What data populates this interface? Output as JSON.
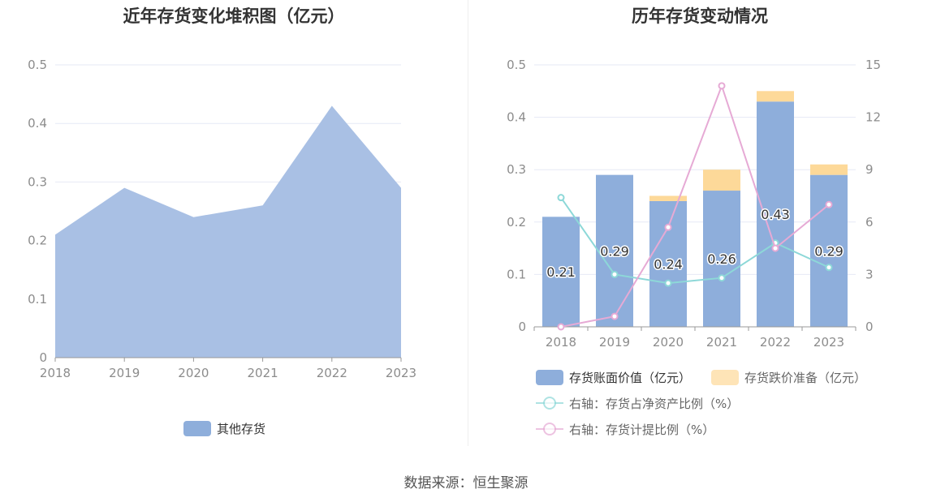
{
  "colors": {
    "area": "#a9c0e4",
    "bar_book": "#8eaedb",
    "bar_provision": "#fdd999",
    "line_share": "#8dd8d8",
    "line_provision": "#e6aad5",
    "grid": "#e6e9f5",
    "axis": "#999999"
  },
  "chart_data": [
    {
      "type": "area",
      "title": "近年存货变化堆积图（亿元）",
      "categories": [
        "2018",
        "2019",
        "2020",
        "2021",
        "2022",
        "2023"
      ],
      "series": [
        {
          "name": "其他存货",
          "values": [
            0.21,
            0.29,
            0.24,
            0.26,
            0.43,
            0.29
          ]
        }
      ],
      "ylim": [
        0,
        0.5
      ],
      "yticks": [
        "0",
        "0.1",
        "0.2",
        "0.3",
        "0.4",
        "0.5"
      ],
      "grid": true,
      "legend_position": "bottom"
    },
    {
      "type": "bar",
      "title": "历年存货变动情况",
      "categories": [
        "2018",
        "2019",
        "2020",
        "2021",
        "2022",
        "2023"
      ],
      "series": [
        {
          "name": "存货账面价值（亿元）",
          "axis": "left",
          "kind": "bar",
          "stack": "a",
          "values": [
            0.21,
            0.29,
            0.24,
            0.26,
            0.43,
            0.29
          ],
          "labels": [
            "0.21",
            "0.29",
            "0.24",
            "0.26",
            "0.43",
            "0.29"
          ]
        },
        {
          "name": "存货跌价准备（亿元）",
          "axis": "left",
          "kind": "bar",
          "stack": "a",
          "values": [
            0,
            0,
            0.01,
            0.04,
            0.02,
            0.02
          ]
        },
        {
          "name": "右轴：存货占净资产比例（%）",
          "axis": "right",
          "kind": "line",
          "values": [
            7.4,
            3.0,
            2.5,
            2.8,
            4.8,
            3.4
          ]
        },
        {
          "name": "右轴：存货计提比例（%）",
          "axis": "right",
          "kind": "line",
          "values": [
            0.0,
            0.6,
            5.7,
            13.8,
            4.5,
            7.0
          ]
        }
      ],
      "ylim_left": [
        0,
        0.5
      ],
      "yticks_left": [
        "0",
        "0.1",
        "0.2",
        "0.3",
        "0.4",
        "0.5"
      ],
      "ylim_right": [
        0,
        15
      ],
      "yticks_right": [
        "0",
        "3",
        "6",
        "9",
        "12",
        "15"
      ],
      "grid": true,
      "legend_position": "bottom"
    }
  ],
  "source": "数据来源：恒生聚源"
}
